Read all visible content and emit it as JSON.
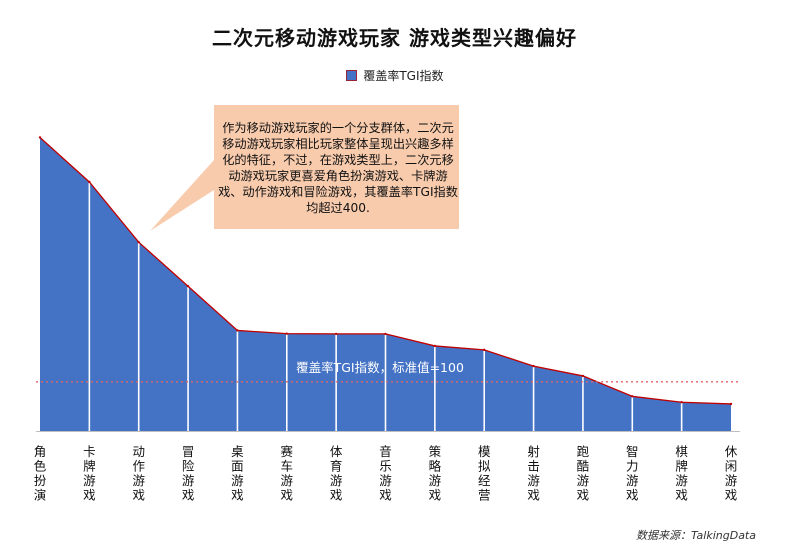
{
  "title": "二次元移动游戏玩家  游戏类型兴趣偏好",
  "legend": {
    "label": "覆盖率TGI指数",
    "color": "#4472C4",
    "border_color": "#9b2335"
  },
  "callout": {
    "text": "作为移动游戏玩家的一个分支群体，二次元移动游戏玩家相比玩家整体呈现出兴趣多样化的特征，不过，在游戏类型上，二次元移动游戏玩家更喜爱角色扮演游戏、卡牌游戏、动作游戏和冒险游戏，其覆盖率TGI指数均超过400.",
    "fill": "#F8CBAD"
  },
  "reference": {
    "label": "覆盖率TGI指数，标准值=100",
    "value": 100,
    "color": "#E06666"
  },
  "source": "数据来源：TalkingData",
  "chart_data": {
    "type": "area",
    "title": "二次元移动游戏玩家  游戏类型兴趣偏好",
    "series": [
      {
        "name": "覆盖率TGI指数",
        "values": [
          1094,
          913,
          668,
          489,
          309,
          296,
          295,
          295,
          246,
          230,
          164,
          124,
          41,
          17,
          10
        ]
      }
    ],
    "categories": [
      "角色扮演",
      "卡牌游戏",
      "动作游戏",
      "冒险游戏",
      "桌面游戏",
      "赛车游戏",
      "体育游戏",
      "音乐游戏",
      "策略游戏",
      "模拟经营",
      "射击游戏",
      "跑酷游戏",
      "智力游戏",
      "棋牌游戏",
      "休闲游戏"
    ],
    "xlabel": "",
    "ylabel": "",
    "ylim": [
      -100,
      1100
    ],
    "grid": false,
    "legend_position": "top-center",
    "area_color": "#4472C4",
    "line_color": "#C00000"
  }
}
